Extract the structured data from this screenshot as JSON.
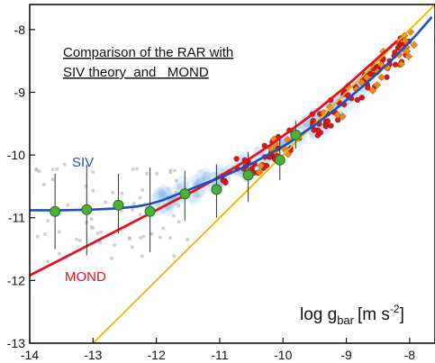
{
  "chart_data": {
    "type": "scatter",
    "title_lines": [
      "Comparison of the RAR with",
      "SIV theory  and   MOND"
    ],
    "xlabel": "log g",
    "xlabel_sub": "bar",
    "xlabel_units": "[m s",
    "xlabel_exp": "-2",
    "xlabel_close": "]",
    "xlim": [
      -14,
      -7.6
    ],
    "ylim": [
      -13,
      -7.6
    ],
    "xticks": [
      -14,
      -13,
      -12,
      -11,
      -10,
      -9,
      -8
    ],
    "yticks": [
      -13,
      -12,
      -11,
      -10,
      -9,
      -8
    ],
    "grid": false,
    "series": [
      {
        "name": "SIV",
        "kind": "line",
        "color": "#1f4fbf",
        "x": [
          -14.0,
          -13.5,
          -13.0,
          -12.6,
          -12.3,
          -12.1,
          -11.9,
          -11.7,
          -11.5,
          -11.3,
          -11.1,
          -10.9,
          -10.7,
          -10.5,
          -10.3,
          -10.1,
          -9.9,
          -9.7,
          -9.5,
          -9.3,
          -9.1,
          -8.9,
          -8.7,
          -8.5,
          -8.3,
          -8.1,
          -7.9,
          -7.65
        ],
        "y": [
          -10.88,
          -10.88,
          -10.87,
          -10.85,
          -10.82,
          -10.78,
          -10.72,
          -10.64,
          -10.56,
          -10.48,
          -10.4,
          -10.32,
          -10.23,
          -10.14,
          -10.03,
          -9.92,
          -9.8,
          -9.66,
          -9.52,
          -9.37,
          -9.21,
          -9.04,
          -8.87,
          -8.69,
          -8.5,
          -8.3,
          -8.09,
          -7.8
        ]
      },
      {
        "name": "MOND",
        "kind": "line",
        "color": "#e8121e",
        "x": [
          -14.0,
          -13.5,
          -13.0,
          -12.5,
          -12.0,
          -11.7,
          -11.4,
          -11.1,
          -10.8,
          -10.5,
          -10.2,
          -9.9,
          -9.6,
          -9.3,
          -9.0,
          -8.7,
          -8.4,
          -8.2
        ],
        "y": [
          -11.92,
          -11.66,
          -11.4,
          -11.14,
          -10.88,
          -10.72,
          -10.57,
          -10.4,
          -10.22,
          -10.04,
          -9.84,
          -9.62,
          -9.4,
          -9.15,
          -8.9,
          -8.63,
          -8.36,
          -8.18
        ]
      },
      {
        "name": "",
        "kind": "line",
        "color": "#f0b400",
        "x": [
          -13.0,
          -7.6
        ],
        "y": [
          -13.0,
          -7.6
        ]
      }
    ],
    "green_points": {
      "x": [
        -13.6,
        -13.1,
        -12.6,
        -12.1,
        -11.55,
        -11.05,
        -10.55,
        -10.05,
        -9.8
      ],
      "y": [
        -10.9,
        -10.87,
        -10.8,
        -10.9,
        -10.62,
        -10.55,
        -10.32,
        -10.08,
        -9.68
      ],
      "err_low": [
        -11.5,
        -11.6,
        -11.25,
        -11.55,
        -11.05,
        -11.0,
        -10.75,
        -10.4,
        -9.9
      ],
      "err_high": [
        -10.3,
        -10.15,
        -10.3,
        -10.2,
        -10.25,
        -10.15,
        -9.95,
        -9.75,
        -9.45
      ],
      "color": "#4caf3a"
    },
    "annotations": {
      "siv_label": "SIV",
      "siv_color": "#1f4fbf",
      "mond_label": "MOND",
      "mond_color": "#e8121e",
      "orange_color": "#f08a1c",
      "red_color": "#d61a1a",
      "cloud_color": "#5aa0e0",
      "gray_color": "#a9a9a9"
    }
  }
}
